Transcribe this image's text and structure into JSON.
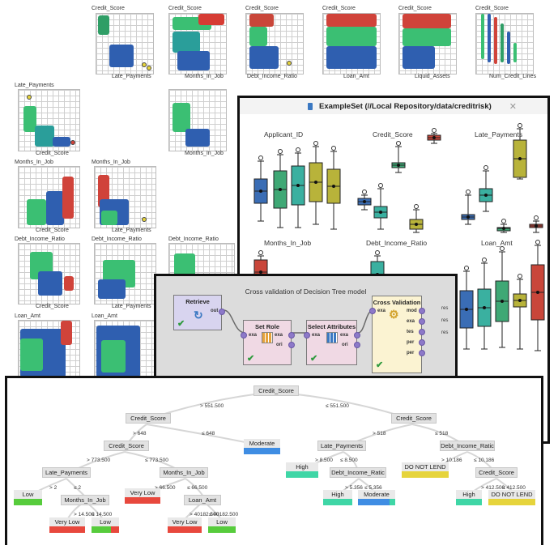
{
  "scatter": {
    "top_row": [
      {
        "title": "Credit_Score",
        "xlabel": "Late_Payments"
      },
      {
        "title": "Credit_Score",
        "xlabel": "Months_In_Job"
      },
      {
        "title": "Credit_Score",
        "xlabel": "Debt_Income_Ratio"
      },
      {
        "title": "Credit_Score",
        "xlabel": "Loan_Amt"
      },
      {
        "title": "Credit_Score",
        "xlabel": "Liquid_Assets"
      },
      {
        "title": "Credit_Score",
        "xlabel": "Num_Credit_Lines"
      }
    ],
    "row2": [
      {
        "title": "Late_Payments",
        "xlabel": "Credit_Score"
      },
      {
        "title": "",
        "xlabel": "Months_In_Job"
      }
    ],
    "row3": [
      {
        "title": "Months_In_Job",
        "xlabel": "Credit_Score"
      },
      {
        "title": "Months_In_Job",
        "xlabel": "Late_Payments"
      }
    ],
    "row4": [
      {
        "title": "Debt_Income_Ratio",
        "xlabel": "Credit_Score"
      },
      {
        "title": "Debt_Income_Ratio",
        "xlabel": "Late_Payments"
      },
      {
        "title": "Debt_Income_Ratio",
        "xlabel": ""
      }
    ],
    "row5": [
      {
        "title": "Loan_Amt",
        "xlabel": ""
      },
      {
        "title": "Loan_Amt",
        "xlabel": ""
      }
    ]
  },
  "exampleset": {
    "title": "ExampleSet (//Local Repository/data/creditrisk)",
    "labels": [
      "Applicant_ID",
      "Credit_Score",
      "Late_Payments",
      "Months_In_Job",
      "Debt_Income_Ratio",
      "Loan_Amt"
    ]
  },
  "process": {
    "title": "Cross validation of Decision Tree model",
    "retrieve": {
      "name": "Retrieve",
      "port_out": "out"
    },
    "setrole": {
      "name": "Set Role",
      "port_in": "exa",
      "port_out1": "exa",
      "port_out2": "ori"
    },
    "selattr": {
      "name": "Select Attributes",
      "port_in": "exa",
      "port_out1": "exa",
      "port_out2": "ori"
    },
    "crossval": {
      "name": "Cross Validation",
      "port_in": "exa",
      "ports_out": [
        "mod",
        "exa",
        "tes",
        "per",
        "per"
      ]
    },
    "res_labels": [
      "res",
      "res",
      "res"
    ]
  },
  "tree": {
    "root": "Credit_Score",
    "n_left": "Credit_Score",
    "n_right": "Credit_Score",
    "n_ll": "Credit_Score",
    "n_late": "Late_Payments",
    "n_dir": "Debt_Income_Ratic",
    "n_lll": "Late_Payments",
    "n_mij": "Months_In_Job",
    "n_dir2": "Debt_Income_Ratic",
    "n_cs": "Credit_Score",
    "n_mij2": "Months_In_Job",
    "n_loan": "Loan_Amt",
    "edges": {
      "root_l": "> 551.500",
      "root_r": "≤ 551.500",
      "left_l": "> 648",
      "left_r": "≤ 648",
      "right_l": "> 518",
      "right_r": "≤ 518",
      "ll_l": "> 773.500",
      "ll_r": "≤ 773.500",
      "late_l": "> 8.500",
      "late_r": "≤ 8.500",
      "dir_l": "> 10.186",
      "dir_r": "≤ 10.186",
      "lll_l": "> 2",
      "lll_r": "≤ 2",
      "mij_l": "> 66.500",
      "mij_r": "≤ 66.500",
      "dir2_l": "> 5.356",
      "dir2_r": "≤ 5.356",
      "cs_l": "> 412.500",
      "cs_r": "≤ 412.500",
      "mij2_l": "> 14.500",
      "mij2_r": "≤ 14.500",
      "loan_l": "> 40182.500",
      "loan_r": "≤ 40182.500"
    },
    "leaves": {
      "moderate1": "Moderate",
      "high1": "High",
      "donotlend1": "DO NOT LEND",
      "low1": "Low",
      "verylow1": "Very Low",
      "high2": "High",
      "moderate2": "Moderate",
      "high3": "High",
      "donotlend2": "DO NOT LEND",
      "verylow2": "Very Low",
      "low2": "Low",
      "verylow3": "Very Low",
      "low3": "Low"
    },
    "colors": {
      "red": "#e8483d",
      "green": "#57cc3c",
      "blue": "#3f8de3",
      "teal": "#3fd6a6",
      "yellow": "#e6d43c"
    }
  }
}
